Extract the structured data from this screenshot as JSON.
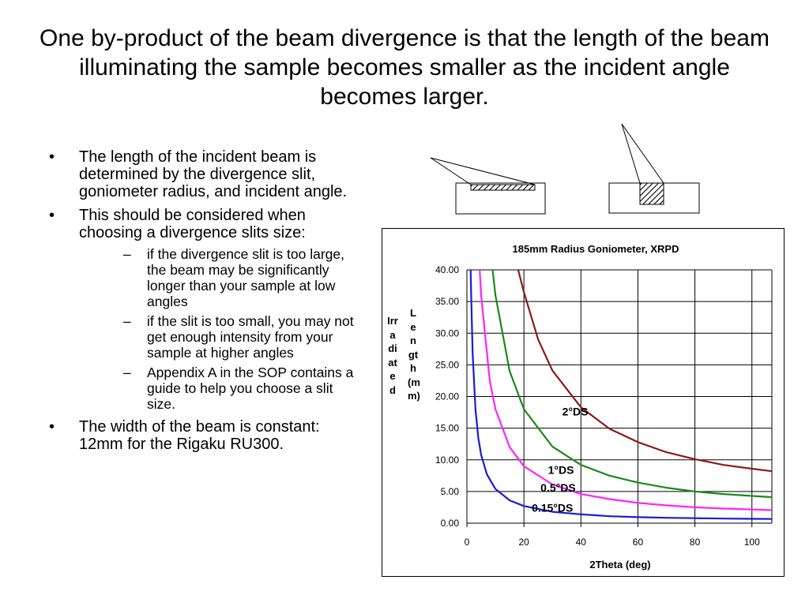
{
  "title": "One by-product of the beam divergence is that the length of the beam illuminating the sample becomes smaller as the incident angle becomes larger.",
  "bullets": [
    {
      "text": "The length of the incident beam is determined by the divergence slit, goniometer radius, and incident angle."
    },
    {
      "text": "This should be considered when choosing a divergence slits size:",
      "subs": [
        "if the divergence slit is too large, the beam may be significantly longer than your sample at low angles",
        "if the slit is too small, you may not get enough intensity from your sample at higher angles",
        "Appendix A in the SOP contains a guide to help you choose a slit size."
      ]
    },
    {
      "text": "The width of the beam is constant: 12mm for the Rigaku RU300."
    }
  ],
  "chart_data": {
    "type": "line",
    "title": "185mm Radius Goniometer, XRPD",
    "xlabel": "2Theta (deg)",
    "ylabel_left": "Irradiated",
    "ylabel_right": "Length (mm)",
    "xlim": [
      0,
      107
    ],
    "ylim": [
      0,
      40
    ],
    "x_ticks": [
      0,
      20,
      40,
      60,
      80,
      100
    ],
    "y_ticks": [
      "0.00",
      "5.00",
      "10.00",
      "15.00",
      "20.00",
      "25.00",
      "30.00",
      "35.00",
      "40.00"
    ],
    "grid": true,
    "series": [
      {
        "name": "2°DS",
        "color": "#8b1a1a",
        "x": [
          18,
          20,
          25,
          30,
          40,
          50,
          60,
          70,
          80,
          90,
          100,
          107
        ],
        "y": [
          40.0,
          36.5,
          29.0,
          24.1,
          18.3,
          14.9,
          12.8,
          11.2,
          10.1,
          9.2,
          8.6,
          8.2
        ]
      },
      {
        "name": "1°DS",
        "color": "#1a8a1a",
        "x": [
          9,
          10,
          15,
          20,
          30,
          40,
          50,
          60,
          70,
          80,
          90,
          100,
          107
        ],
        "y": [
          40.0,
          36.0,
          24.0,
          18.0,
          12.1,
          9.2,
          7.5,
          6.4,
          5.6,
          5.0,
          4.6,
          4.3,
          4.1
        ]
      },
      {
        "name": "0.5°DS",
        "color": "#ff22ff",
        "x": [
          4.5,
          5,
          8,
          10,
          15,
          20,
          30,
          40,
          50,
          60,
          70,
          80,
          90,
          100,
          107
        ],
        "y": [
          40.0,
          36.0,
          22.5,
          18.0,
          12.0,
          9.0,
          6.1,
          4.6,
          3.8,
          3.2,
          2.8,
          2.5,
          2.3,
          2.15,
          2.05
        ]
      },
      {
        "name": "0.15°DS",
        "color": "#1a1ad6",
        "x": [
          1.3,
          1.5,
          2,
          3,
          4,
          5,
          7,
          10,
          15,
          20,
          30,
          40,
          50,
          60,
          70,
          80,
          90,
          100,
          107
        ],
        "y": [
          40.0,
          36.0,
          27.0,
          18.0,
          13.5,
          10.8,
          7.7,
          5.4,
          3.6,
          2.7,
          1.8,
          1.4,
          1.1,
          0.95,
          0.85,
          0.78,
          0.72,
          0.68,
          0.66
        ]
      }
    ]
  }
}
